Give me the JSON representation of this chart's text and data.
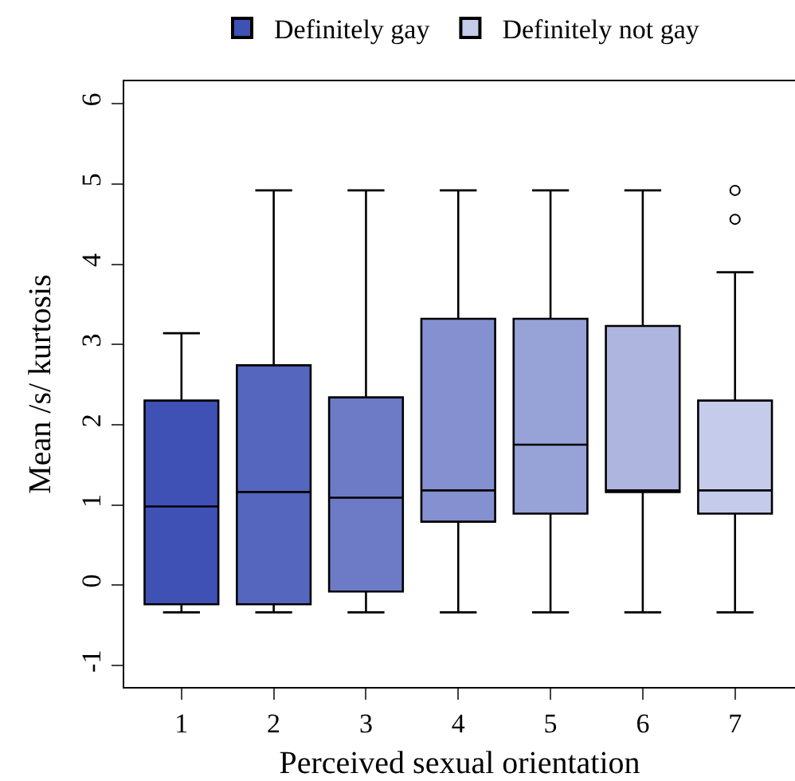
{
  "chart_data": {
    "type": "box",
    "xlabel": "Perceived sexual orientation",
    "ylabel": "Mean /s/ kurtosis",
    "categories": [
      "1",
      "2",
      "3",
      "4",
      "5",
      "6",
      "7"
    ],
    "ylim": [
      -1.27,
      6.28
    ],
    "yticks": [
      -1,
      0,
      1,
      2,
      3,
      4,
      5,
      6
    ],
    "legend": "top",
    "series": [
      {
        "name": "Definitely gay",
        "color": "#3f51b5",
        "boxes": [
          {
            "low": -0.34,
            "q1": -0.24,
            "median": 0.98,
            "q3": 2.3,
            "high": 3.14
          },
          null,
          null,
          null,
          null,
          null,
          null
        ]
      },
      {
        "color": "#5466bd",
        "boxes": [
          null,
          {
            "low": -0.34,
            "q1": -0.24,
            "median": 1.16,
            "q3": 2.74,
            "high": 4.92
          },
          null,
          null,
          null,
          null,
          null
        ]
      },
      {
        "color": "#6d7bc6",
        "boxes": [
          null,
          null,
          {
            "low": -0.34,
            "q1": -0.08,
            "median": 1.09,
            "q3": 2.34,
            "high": 4.92
          },
          null,
          null,
          null,
          null
        ]
      },
      {
        "color": "#8490cf",
        "boxes": [
          null,
          null,
          null,
          {
            "low": -0.34,
            "q1": 0.79,
            "median": 1.18,
            "q3": 3.32,
            "high": 4.92
          },
          null,
          null,
          null
        ]
      },
      {
        "color": "#97a2d6",
        "boxes": [
          null,
          null,
          null,
          null,
          {
            "low": -0.34,
            "q1": 0.89,
            "median": 1.75,
            "q3": 3.32,
            "high": 4.92
          },
          null,
          null
        ]
      },
      {
        "color": "#aeb6e0",
        "boxes": [
          null,
          null,
          null,
          null,
          null,
          {
            "low": -0.34,
            "q1": 1.16,
            "median": 1.18,
            "q3": 3.23,
            "high": 4.92
          },
          null
        ]
      },
      {
        "name": "Definitely not gay",
        "color": "#c5cbea",
        "boxes": [
          null,
          null,
          null,
          null,
          null,
          null,
          {
            "low": -0.34,
            "q1": 0.89,
            "median": 1.18,
            "q3": 2.3,
            "high": 3.9,
            "outliers": [
              4.92,
              4.56
            ]
          }
        ]
      }
    ]
  }
}
